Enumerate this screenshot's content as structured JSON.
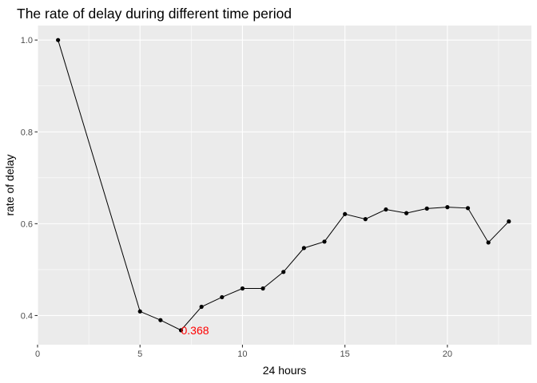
{
  "chart_data": {
    "type": "line",
    "title": "The rate of delay during different time period",
    "xlabel": "24 hours",
    "ylabel": "rate of delay",
    "xlim": [
      0,
      24.1
    ],
    "ylim": [
      0.3365,
      1.0316
    ],
    "x_ticks": [
      0,
      5,
      10,
      15,
      20
    ],
    "y_ticks": [
      0.4,
      0.6,
      0.8,
      1.0
    ],
    "x_tick_labels": [
      "0",
      "5",
      "10",
      "15",
      "20"
    ],
    "y_tick_labels": [
      "0.4",
      "0.6",
      "0.8",
      "1.0"
    ],
    "grid": true,
    "series": [
      {
        "x": [
          1,
          5,
          6,
          7,
          8,
          9,
          10,
          11,
          12,
          13,
          14,
          15,
          16,
          17,
          18,
          19,
          20,
          21,
          22,
          23
        ],
        "y": [
          1.0,
          0.409,
          0.39,
          0.368,
          0.419,
          0.44,
          0.459,
          0.459,
          0.495,
          0.547,
          0.561,
          0.621,
          0.61,
          0.631,
          0.623,
          0.633,
          0.636,
          0.634,
          0.559,
          0.605
        ]
      }
    ],
    "annotations": [
      {
        "x": 7,
        "y": 0.368,
        "text": "0.368",
        "color": "#ff0000"
      }
    ],
    "colors": {
      "panel": "#ebebeb",
      "grid_major": "#ffffff",
      "line": "#000000",
      "point": "#000000",
      "annotation": "#ff0000"
    }
  }
}
